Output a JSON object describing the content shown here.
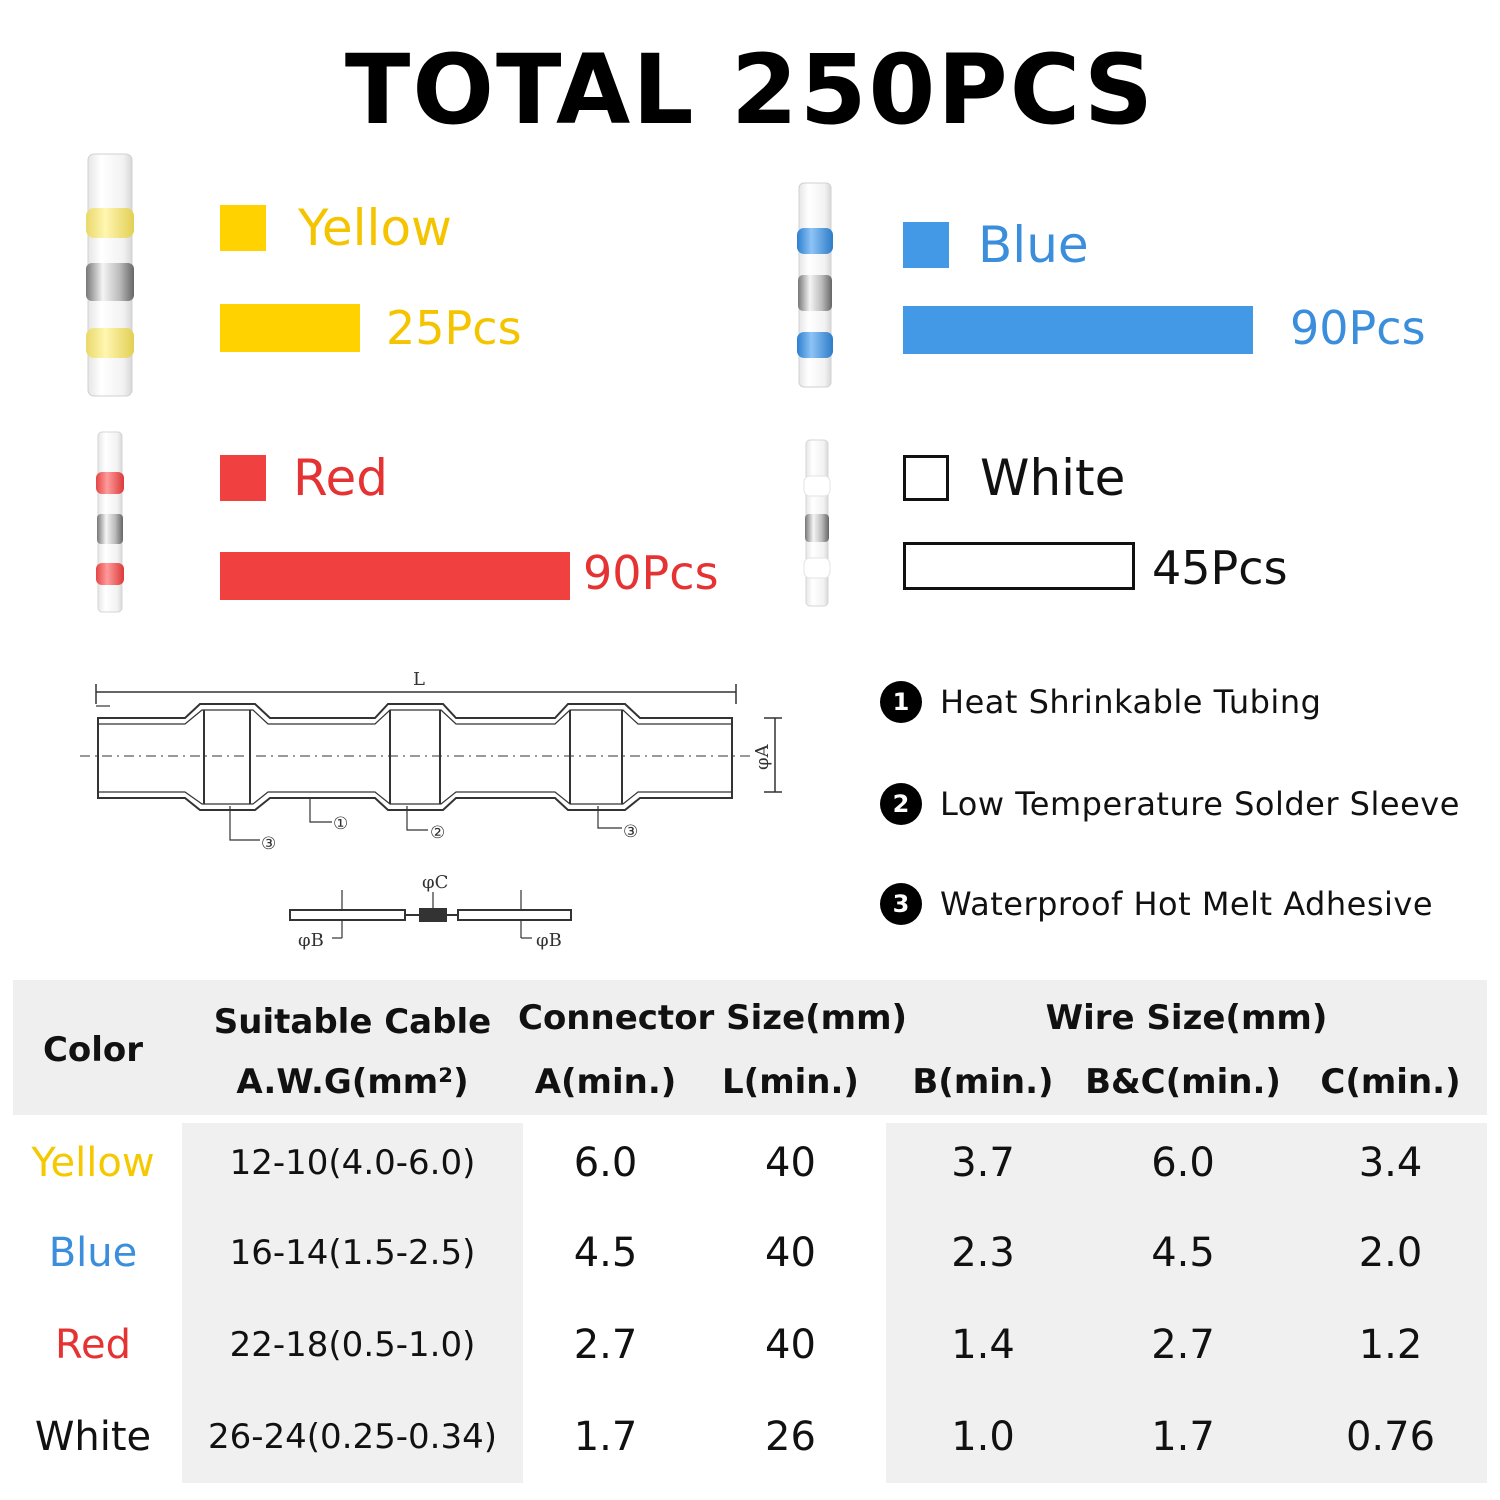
{
  "title": "TOTAL 250PCS",
  "colors": {
    "yellow": "#FFD200",
    "blue": "#4499E6",
    "red": "#F04040",
    "white": "#FFFFFF"
  },
  "kits": [
    {
      "name": "Yellow",
      "count_label": "25Pcs",
      "count": 25,
      "color": "#FFD200"
    },
    {
      "name": "Blue",
      "count_label": "90Pcs",
      "count": 90,
      "color": "#4499E6"
    },
    {
      "name": "Red",
      "count_label": "90Pcs",
      "count": 90,
      "color": "#F04040"
    },
    {
      "name": "White",
      "count_label": "45Pcs",
      "count": 45,
      "color": "#FFFFFF"
    }
  ],
  "diagram": {
    "label_L": "L",
    "label_A": "φA",
    "label_C": "φC",
    "label_B_left": "φB",
    "label_B_right": "φB",
    "callout_1": "①",
    "callout_2": "②",
    "callout_3": "③"
  },
  "legend": [
    {
      "num": "1",
      "text": "Heat Shrinkable Tubing"
    },
    {
      "num": "2",
      "text": "Low Temperature Solder Sleeve"
    },
    {
      "num": "3",
      "text": "Waterproof Hot Melt Adhesive"
    }
  ],
  "table": {
    "header": {
      "color": "Color",
      "cable_top": "Suitable Cable",
      "cable_bottom": "A.W.G(mm²)",
      "connector_group": "Connector Size(mm)",
      "wire_group": "Wire Size(mm)",
      "a_min": "A(min.)",
      "l_min": "L(min.)",
      "b_min": "B(min.)",
      "bc_min": "B&C(min.)",
      "c_min": "C(min.)"
    },
    "rows": [
      {
        "color": "Yellow",
        "color_hex": "#F5C800",
        "cable": "12-10(4.0-6.0)",
        "a": "6.0",
        "l": "40",
        "b": "3.7",
        "bc": "6.0",
        "c": "3.4"
      },
      {
        "color": "Blue",
        "color_hex": "#3A8EDB",
        "cable": "16-14(1.5-2.5)",
        "a": "4.5",
        "l": "40",
        "b": "2.3",
        "bc": "4.5",
        "c": "2.0"
      },
      {
        "color": "Red",
        "color_hex": "#E53333",
        "cable": "22-18(0.5-1.0)",
        "a": "2.7",
        "l": "40",
        "b": "1.4",
        "bc": "2.7",
        "c": "1.2"
      },
      {
        "color": "White",
        "color_hex": "#111111",
        "cable": "26-24(0.25-0.34)",
        "a": "1.7",
        "l": "26",
        "b": "1.0",
        "bc": "1.7",
        "c": "0.76"
      }
    ]
  }
}
